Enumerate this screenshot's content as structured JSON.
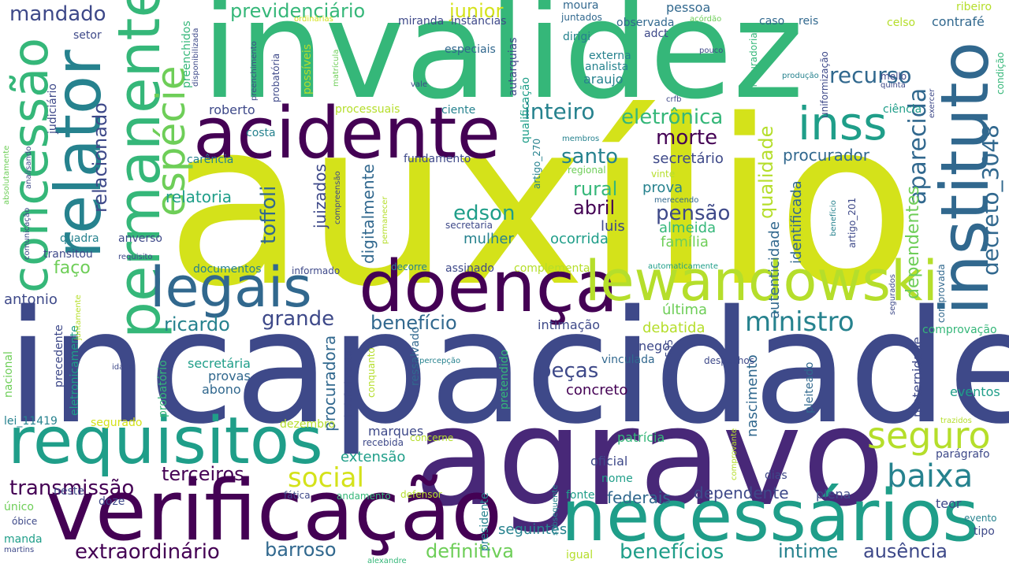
{
  "palette": {
    "purple": "#440154",
    "indigo": "#482878",
    "navy": "#3e4989",
    "blue": "#31688e",
    "teal": "#26828e",
    "green_teal": "#1f9e89",
    "green": "#35b779",
    "light_green": "#6ece58",
    "yellow_green": "#b5de2b",
    "yellow": "#d4e21a"
  },
  "words": [
    {
      "text": "auxílio",
      "color": "#d4e21a"
    },
    {
      "text": "incapacidade",
      "color": "#3e4989"
    },
    {
      "text": "invalidez",
      "color": "#35b779"
    },
    {
      "text": "agravo",
      "color": "#482878"
    },
    {
      "text": "verificação",
      "color": "#440154"
    },
    {
      "text": "necessários",
      "color": "#1f9e89"
    },
    {
      "text": "acidente",
      "color": "#440154"
    },
    {
      "text": "doença",
      "color": "#440154"
    },
    {
      "text": "requisitos",
      "color": "#1f9e89"
    },
    {
      "text": "lewandowski",
      "color": "#b5de2b"
    },
    {
      "text": "instituto",
      "color": "#31688e"
    },
    {
      "text": "permanente",
      "color": "#35b779"
    },
    {
      "text": "relator",
      "color": "#26828e"
    },
    {
      "text": "concessão",
      "color": "#35b779"
    },
    {
      "text": "legais",
      "color": "#31688e"
    },
    {
      "text": "inss",
      "color": "#1f9e89"
    },
    {
      "text": "seguro",
      "color": "#b5de2b"
    },
    {
      "text": "baixa",
      "color": "#26828e"
    },
    {
      "text": "espécie",
      "color": "#6ece58"
    },
    {
      "text": "aparecida",
      "color": "#31688e"
    },
    {
      "text": "decreto_3048",
      "color": "#31688e"
    },
    {
      "text": "ministro",
      "color": "#26828e"
    },
    {
      "text": "social",
      "color": "#d4e21a"
    },
    {
      "text": "extraordinário",
      "color": "#440154"
    },
    {
      "text": "transmissão",
      "color": "#440154"
    },
    {
      "text": "benefícios",
      "color": "#1f9e89"
    },
    {
      "text": "definitiva",
      "color": "#6ece58"
    },
    {
      "text": "barroso",
      "color": "#31688e"
    },
    {
      "text": "ausência",
      "color": "#3e4989"
    },
    {
      "text": "intime",
      "color": "#26828e"
    },
    {
      "text": "terceiros",
      "color": "#440154"
    },
    {
      "text": "grande",
      "color": "#3e4989"
    },
    {
      "text": "benefício",
      "color": "#31688e"
    },
    {
      "text": "ricardo",
      "color": "#26828e"
    },
    {
      "text": "toffoli",
      "color": "#31688e"
    },
    {
      "text": "pensão",
      "color": "#3e4989"
    },
    {
      "text": "rural",
      "color": "#35b779"
    },
    {
      "text": "santo",
      "color": "#26828e"
    },
    {
      "text": "abril",
      "color": "#440154"
    },
    {
      "text": "morte",
      "color": "#440154"
    },
    {
      "text": "edson",
      "color": "#1f9e89"
    },
    {
      "text": "inteiro",
      "color": "#26828e"
    },
    {
      "text": "eletrônica",
      "color": "#35b779"
    },
    {
      "text": "peças",
      "color": "#3e4989"
    },
    {
      "text": "concreto",
      "color": "#440154"
    },
    {
      "text": "recurso",
      "color": "#31688e"
    },
    {
      "text": "previdenciário",
      "color": "#35b779"
    },
    {
      "text": "mandado",
      "color": "#3e4989"
    },
    {
      "text": "junior",
      "color": "#d4e21a"
    },
    {
      "text": "relacionado",
      "color": "#3e4989"
    },
    {
      "text": "qualidade",
      "color": "#b5de2b"
    },
    {
      "text": "dependentes",
      "color": "#6ece58"
    },
    {
      "text": "faço",
      "color": "#6ece58"
    },
    {
      "text": "relatoria",
      "color": "#1f9e89"
    },
    {
      "text": "dependente",
      "color": "#3e4989"
    },
    {
      "text": "federais",
      "color": "#31688e"
    },
    {
      "text": "seguintes",
      "color": "#26828e"
    },
    {
      "text": "procuradora",
      "color": "#31688e"
    },
    {
      "text": "juizados",
      "color": "#3e4989"
    },
    {
      "text": "digitalmente",
      "color": "#31688e"
    },
    {
      "text": "procurador",
      "color": "#31688e"
    },
    {
      "text": "secretário",
      "color": "#3e4989"
    },
    {
      "text": "prova",
      "color": "#26828e"
    },
    {
      "text": "almeida",
      "color": "#35b779"
    },
    {
      "text": "família",
      "color": "#6ece58"
    },
    {
      "text": "luis",
      "color": "#3e4989"
    },
    {
      "text": "ocorrida",
      "color": "#1f9e89"
    },
    {
      "text": "mulher",
      "color": "#26828e"
    },
    {
      "text": "identificada",
      "color": "#31688e"
    },
    {
      "text": "autenticidade",
      "color": "#31688e"
    },
    {
      "text": "maternidade",
      "color": "#3e4989"
    },
    {
      "text": "nascimento",
      "color": "#31688e"
    },
    {
      "text": "última",
      "color": "#6ece58"
    },
    {
      "text": "debatida",
      "color": "#b5de2b"
    },
    {
      "text": "intimação",
      "color": "#3e4989"
    },
    {
      "text": "extensão",
      "color": "#1f9e89"
    },
    {
      "text": "marques",
      "color": "#3e4989"
    },
    {
      "text": "antonio",
      "color": "#3e4989"
    },
    {
      "text": "provas",
      "color": "#31688e"
    },
    {
      "text": "secretária",
      "color": "#1f9e89"
    },
    {
      "text": "abono",
      "color": "#31688e"
    },
    {
      "text": "oficial",
      "color": "#3e4989"
    },
    {
      "text": "patrícia",
      "color": "#35b779"
    },
    {
      "text": "nome",
      "color": "#1f9e89"
    },
    {
      "text": "plena",
      "color": "#3e4989"
    },
    {
      "text": "teor",
      "color": "#3e4989"
    },
    {
      "text": "parágrafo",
      "color": "#3e4989"
    },
    {
      "text": "eventos",
      "color": "#1f9e89"
    },
    {
      "text": "comprovação",
      "color": "#35b779"
    },
    {
      "text": "contrafé",
      "color": "#31688e"
    },
    {
      "text": "ribeiro",
      "color": "#b5de2b"
    },
    {
      "text": "ciência",
      "color": "#1f9e89"
    },
    {
      "text": "roberto",
      "color": "#3e4989"
    },
    {
      "text": "processuais",
      "color": "#b5de2b"
    },
    {
      "text": "ciente",
      "color": "#26828e"
    },
    {
      "text": "fundamento",
      "color": "#3e4989"
    },
    {
      "text": "carência",
      "color": "#26828e"
    },
    {
      "text": "costa",
      "color": "#26828e"
    },
    {
      "text": "anverso",
      "color": "#3e4989"
    },
    {
      "text": "quadra",
      "color": "#26828e"
    },
    {
      "text": "transitou",
      "color": "#3e4989"
    },
    {
      "text": "setor",
      "color": "#3e4989"
    },
    {
      "text": "moura",
      "color": "#31688e"
    },
    {
      "text": "pessoa",
      "color": "#31688e"
    },
    {
      "text": "juntados",
      "color": "#31688e"
    },
    {
      "text": "observada",
      "color": "#31688e"
    },
    {
      "text": "adct",
      "color": "#3e4989"
    },
    {
      "text": "reis",
      "color": "#31688e"
    },
    {
      "text": "caso",
      "color": "#31688e"
    },
    {
      "text": "celso",
      "color": "#b5de2b"
    },
    {
      "text": "dirigi",
      "color": "#26828e"
    },
    {
      "text": "externa",
      "color": "#26828e"
    },
    {
      "text": "analista",
      "color": "#26828e"
    },
    {
      "text": "araujo",
      "color": "#26828e"
    },
    {
      "text": "especiais",
      "color": "#31688e"
    },
    {
      "text": "miranda",
      "color": "#3e4989"
    },
    {
      "text": "instâncias",
      "color": "#3e4989"
    },
    {
      "text": "autarquias",
      "color": "#3e4989"
    },
    {
      "text": "qualificação",
      "color": "#1f9e89"
    },
    {
      "text": "artigo_270",
      "color": "#26828e"
    },
    {
      "text": "regional",
      "color": "#6ece58"
    },
    {
      "text": "vinte",
      "color": "#b5de2b"
    },
    {
      "text": "merecendo",
      "color": "#31688e"
    },
    {
      "text": "secretaria",
      "color": "#3e4989"
    },
    {
      "text": "assinado",
      "color": "#3e4989"
    },
    {
      "text": "complementar",
      "color": "#b5de2b"
    },
    {
      "text": "automaticamente",
      "color": "#1f9e89"
    },
    {
      "text": "documentos",
      "color": "#26828e"
    },
    {
      "text": "informado",
      "color": "#3e4989"
    },
    {
      "text": "decorre",
      "color": "#26828e"
    },
    {
      "text": "nego",
      "color": "#3e4989"
    },
    {
      "text": "vinculada",
      "color": "#31688e"
    },
    {
      "text": "despachos",
      "color": "#3e4989"
    },
    {
      "text": "pleiteado",
      "color": "#31688e"
    },
    {
      "text": "artigo_535",
      "color": "#3e4989"
    },
    {
      "text": "ressalvado",
      "color": "#31688e"
    },
    {
      "text": "pretendido",
      "color": "#35b779"
    },
    {
      "text": "indeferimento",
      "color": "#3e4989"
    },
    {
      "text": "recebida",
      "color": "#3e4989"
    },
    {
      "text": "concerne",
      "color": "#b5de2b"
    },
    {
      "text": "presidente",
      "color": "#26828e"
    },
    {
      "text": "lei_11419",
      "color": "#26828e"
    },
    {
      "text": "segurado",
      "color": "#d4e21a"
    },
    {
      "text": "dezembro",
      "color": "#b5de2b"
    },
    {
      "text": "neste",
      "color": "#3e4989"
    },
    {
      "text": "doze",
      "color": "#3e4989"
    },
    {
      "text": "fática",
      "color": "#3e4989"
    },
    {
      "text": "andamento",
      "color": "#35b779"
    },
    {
      "text": "defensor",
      "color": "#b5de2b"
    },
    {
      "text": "igual",
      "color": "#b5de2b"
    },
    {
      "text": "fonte",
      "color": "#1f9e89"
    },
    {
      "text": "dias",
      "color": "#3e4989"
    },
    {
      "text": "único",
      "color": "#6ece58"
    },
    {
      "text": "óbice",
      "color": "#3e4989"
    },
    {
      "text": "manda",
      "color": "#1f9e89"
    },
    {
      "text": "martins",
      "color": "#3e4989"
    },
    {
      "text": "alexandre",
      "color": "#35b779"
    },
    {
      "text": "evento",
      "color": "#26828e"
    },
    {
      "text": "tipo",
      "color": "#3e4989"
    },
    {
      "text": "trazidos",
      "color": "#b5de2b"
    },
    {
      "text": "nacional",
      "color": "#6ece58"
    },
    {
      "text": "precedente",
      "color": "#3e4989"
    },
    {
      "text": "eletronicamente",
      "color": "#1f9e89"
    },
    {
      "text": "probatório",
      "color": "#35b779"
    },
    {
      "text": "idade",
      "color": "#3e4989"
    },
    {
      "text": "percepção",
      "color": "#26828e"
    },
    {
      "text": "conquanto",
      "color": "#b5de2b"
    },
    {
      "text": "juntamente",
      "color": "#b5de2b"
    },
    {
      "text": "comunicação",
      "color": "#3e4989"
    },
    {
      "text": "requisito",
      "color": "#3e4989"
    },
    {
      "text": "absolutamente",
      "color": "#6ece58"
    },
    {
      "text": "analisando",
      "color": "#3e4989"
    },
    {
      "text": "judiciário",
      "color": "#3e4989"
    },
    {
      "text": "preenchidos",
      "color": "#35b779"
    },
    {
      "text": "preenchimento",
      "color": "#3e4989"
    },
    {
      "text": "probatória",
      "color": "#3e4989"
    },
    {
      "text": "disponibilizada",
      "color": "#3e4989"
    },
    {
      "text": "possíveis",
      "color": "#b5de2b"
    },
    {
      "text": "matrícula",
      "color": "#6ece58"
    },
    {
      "text": "ordinárias",
      "color": "#d4e21a"
    },
    {
      "text": "vale",
      "color": "#3e4989"
    },
    {
      "text": "crfb",
      "color": "#3e4989"
    },
    {
      "text": "membros",
      "color": "#26828e"
    },
    {
      "text": "acórdão",
      "color": "#6ece58"
    },
    {
      "text": "procuradoria",
      "color": "#35b779"
    },
    {
      "text": "uniformização",
      "color": "#3e4989"
    },
    {
      "text": "pouco",
      "color": "#3e4989"
    },
    {
      "text": "produção",
      "color": "#26828e"
    },
    {
      "text": "mello",
      "color": "#3e4989"
    },
    {
      "text": "quinta",
      "color": "#3e4989"
    },
    {
      "text": "exercer",
      "color": "#3e4989"
    },
    {
      "text": "condição",
      "color": "#35b779"
    },
    {
      "text": "benefício",
      "color": "#26828e"
    },
    {
      "text": "artigo_201",
      "color": "#3e4989"
    },
    {
      "text": "segurados",
      "color": "#3e4989"
    },
    {
      "text": "comprovada",
      "color": "#31688e"
    },
    {
      "text": "permanecer",
      "color": "#b5de2b"
    },
    {
      "text": "compreensão",
      "color": "#3e4989"
    },
    {
      "text": "subsequente",
      "color": "#26828e"
    },
    {
      "text": "comprovante",
      "color": "#b5de2b"
    }
  ]
}
